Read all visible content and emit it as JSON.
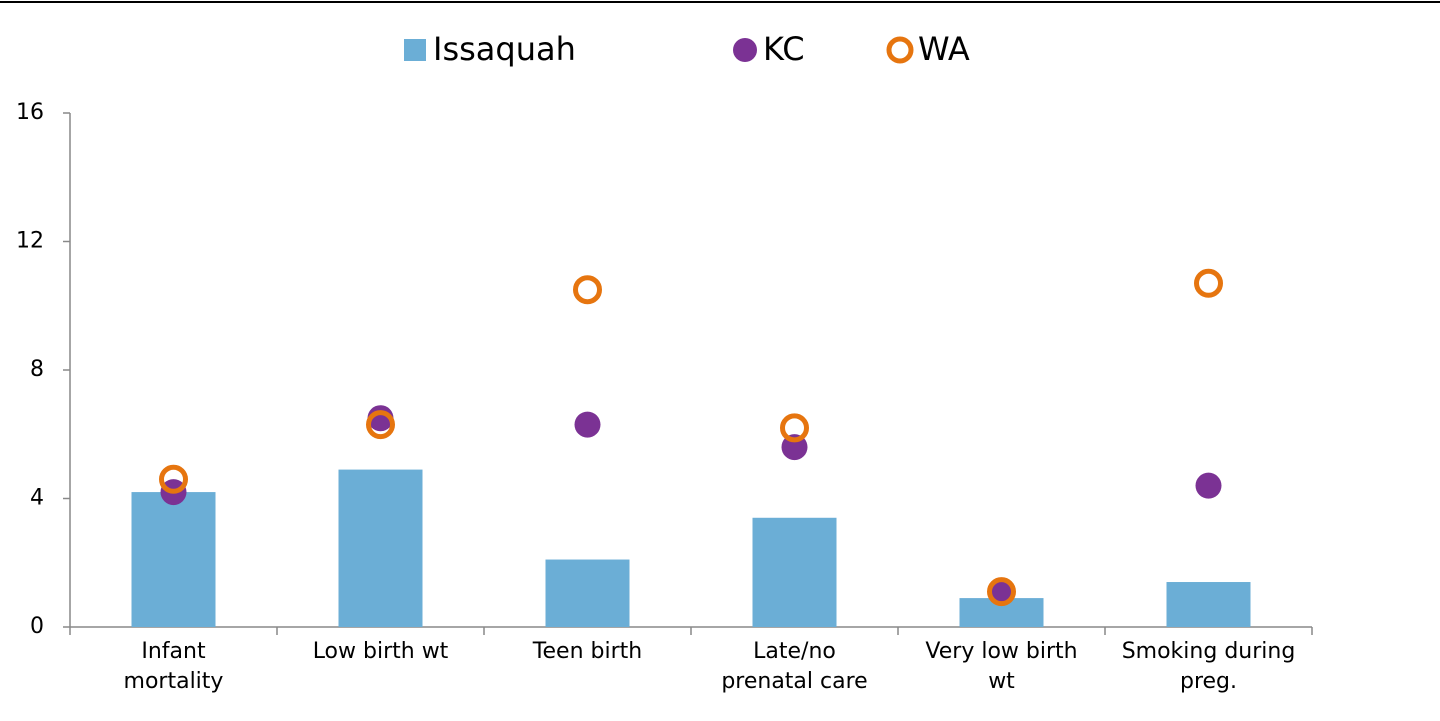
{
  "chart_data": {
    "type": "bar",
    "categories": [
      "Infant\nmortality",
      "Low birth wt",
      "Teen birth",
      "Late/no\nprenatal care",
      "Very low birth\nwt",
      "Smoking during\npreg."
    ],
    "series": [
      {
        "name": "Issaquah",
        "type": "bar",
        "color": "#6baed6",
        "values": [
          4.2,
          4.9,
          2.1,
          3.4,
          0.9,
          1.4
        ]
      },
      {
        "name": "KC",
        "type": "scatter",
        "color": "#7b3294",
        "values": [
          4.2,
          6.5,
          6.3,
          5.6,
          1.1,
          4.4
        ]
      },
      {
        "name": "WA",
        "type": "scatter-open",
        "color": "#e6750f",
        "values": [
          4.6,
          6.3,
          10.5,
          6.2,
          1.1,
          10.7
        ]
      }
    ],
    "ylim": [
      0,
      16
    ],
    "yticks": [
      0,
      4,
      8,
      12,
      16
    ],
    "legend": "top"
  }
}
